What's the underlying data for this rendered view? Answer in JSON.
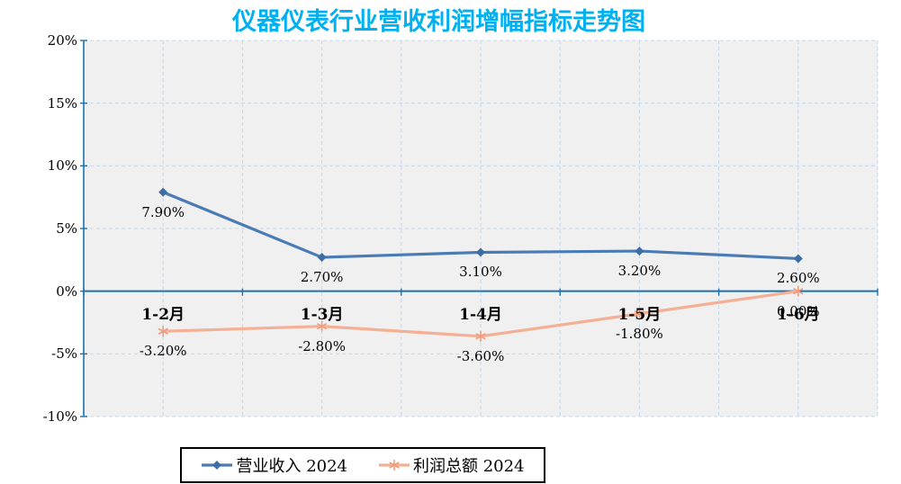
{
  "title": {
    "text": "仪器仪表行业营收利润增幅指标走势图",
    "color": "#00B0F0"
  },
  "chart_data": {
    "type": "line",
    "categories": [
      "1-2月",
      "1-3月",
      "1-4月",
      "1-5月",
      "1-6月"
    ],
    "series": [
      {
        "name": "营业收入 2024",
        "values": [
          7.9,
          2.7,
          3.1,
          3.2,
          2.6
        ],
        "labels": [
          "7.90%",
          "2.70%",
          "3.10%",
          "3.20%",
          "2.60%"
        ],
        "color": "#4A7BB5",
        "marker_color": "#3C6DA5",
        "marker": "diamond"
      },
      {
        "name": "利润总额 2024",
        "values": [
          -3.2,
          -2.8,
          -3.6,
          -1.8,
          0.0
        ],
        "labels": [
          "-3.20%",
          "-2.80%",
          "-3.60%",
          "-1.80%",
          "0.00%"
        ],
        "color": "#F5AF95",
        "marker_color": "#EF9C7D",
        "marker": "star"
      }
    ],
    "ylim": [
      -10,
      20
    ],
    "ytick_step": 5,
    "ytick_labels": [
      "20%",
      "15%",
      "10%",
      "5%",
      "0%",
      "-5%",
      "-10%"
    ],
    "grid": true,
    "axis_color": "#1B72B0",
    "gridline_color": "#C3D8EC",
    "plot_bg_color": "#F0F0F1",
    "legend_position": "bottom"
  }
}
